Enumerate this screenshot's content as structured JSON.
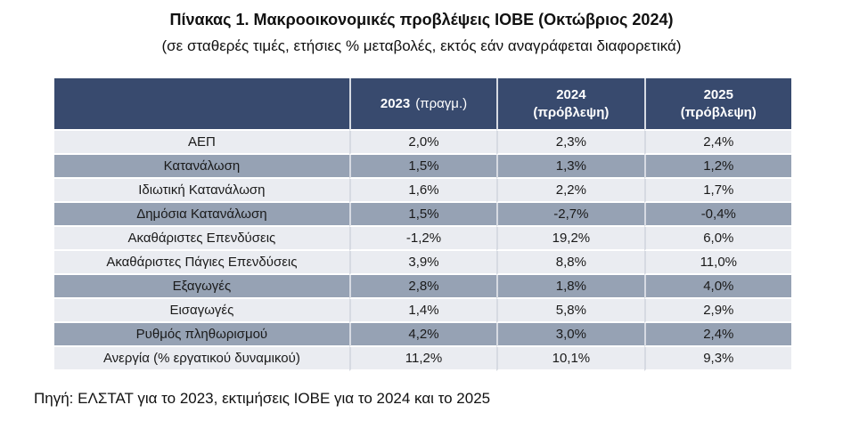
{
  "page": {
    "title": "Πίνακας 1. Μακροοικονομικές προβλέψεις ΙΟΒΕ (Οκτώβριος 2024)",
    "subtitle": "(σε σταθερές τιμές, ετήσιες % μεταβολές, εκτός εάν αναγράφεται διαφορετικά)",
    "source_note": "Πηγή: ΕΛΣΤΑΤ για το 2023, εκτιμήσεις ΙΟΒΕ για το 2024 και το 2025"
  },
  "colors": {
    "header_bg": "#384A6E",
    "header_text": "#FFFFFF",
    "row_dark": "#96A2B4",
    "row_light": "#EAECF1",
    "cell_divider": "#D6DAE2",
    "body_text": "#1A1A1A"
  },
  "table": {
    "header": {
      "col2023": {
        "year": "2023",
        "note": "(πραγμ.)"
      },
      "col2024": {
        "year": "2024",
        "note": "(πρόβλεψη)"
      },
      "col2025": {
        "year": "2025",
        "note": "(πρόβλεψη)"
      }
    },
    "rows": [
      {
        "label": "ΑΕΠ",
        "v2023": "2,0%",
        "v2024": "2,3%",
        "v2025": "2,4%",
        "shade": "light"
      },
      {
        "label": "Κατανάλωση",
        "v2023": "1,5%",
        "v2024": "1,3%",
        "v2025": "1,2%",
        "shade": "dark"
      },
      {
        "label": "Ιδιωτική Κατανάλωση",
        "v2023": "1,6%",
        "v2024": "2,2%",
        "v2025": "1,7%",
        "shade": "light"
      },
      {
        "label": "Δημόσια Κατανάλωση",
        "v2023": "1,5%",
        "v2024": "-2,7%",
        "v2025": "-0,4%",
        "shade": "dark"
      },
      {
        "label": "Ακαθάριστες Επενδύσεις",
        "v2023": "-1,2%",
        "v2024": "19,2%",
        "v2025": "6,0%",
        "shade": "light"
      },
      {
        "label": "Ακαθάριστες Πάγιες Επενδύσεις",
        "v2023": "3,9%",
        "v2024": "8,8%",
        "v2025": "11,0%",
        "shade": "light"
      },
      {
        "label": "Εξαγωγές",
        "v2023": "2,8%",
        "v2024": "1,8%",
        "v2025": "4,0%",
        "shade": "dark"
      },
      {
        "label": "Εισαγωγές",
        "v2023": "1,4%",
        "v2024": "5,8%",
        "v2025": "2,9%",
        "shade": "light"
      },
      {
        "label": "Ρυθμός πληθωρισμού",
        "v2023": "4,2%",
        "v2024": "3,0%",
        "v2025": "2,4%",
        "shade": "dark"
      },
      {
        "label": "Ανεργία (% εργατικού δυναμικού)",
        "v2023": "11,2%",
        "v2024": "10,1%",
        "v2025": "9,3%",
        "shade": "light"
      }
    ]
  },
  "chart_data": {
    "type": "table",
    "title": "Πίνακας 1. Μακροοικονομικές προβλέψεις ΙΟΒΕ (Οκτώβριος 2024)",
    "subtitle": "(σε σταθερές τιμές, ετήσιες % μεταβολές, εκτός εάν αναγράφεται διαφορετικά)",
    "source": "Πηγή: ΕΛΣΤΑΤ για το 2023, εκτιμήσεις ΙΟΒΕ για το 2024 και το 2025",
    "columns": [
      "",
      "2023 (πραγμ.)",
      "2024 (πρόβλεψη)",
      "2025 (πρόβλεψη)"
    ],
    "rows": [
      {
        "indicator": "ΑΕΠ",
        "y2023": 2.0,
        "y2024": 2.3,
        "y2025": 2.4
      },
      {
        "indicator": "Κατανάλωση",
        "y2023": 1.5,
        "y2024": 1.3,
        "y2025": 1.2
      },
      {
        "indicator": "Ιδιωτική Κατανάλωση",
        "y2023": 1.6,
        "y2024": 2.2,
        "y2025": 1.7
      },
      {
        "indicator": "Δημόσια Κατανάλωση",
        "y2023": 1.5,
        "y2024": -2.7,
        "y2025": -0.4
      },
      {
        "indicator": "Ακαθάριστες Επενδύσεις",
        "y2023": -1.2,
        "y2024": 19.2,
        "y2025": 6.0
      },
      {
        "indicator": "Ακαθάριστες Πάγιες Επενδύσεις",
        "y2023": 3.9,
        "y2024": 8.8,
        "y2025": 11.0
      },
      {
        "indicator": "Εξαγωγές",
        "y2023": 2.8,
        "y2024": 1.8,
        "y2025": 4.0
      },
      {
        "indicator": "Εισαγωγές",
        "y2023": 1.4,
        "y2024": 5.8,
        "y2025": 2.9
      },
      {
        "indicator": "Ρυθμός πληθωρισμού",
        "y2023": 4.2,
        "y2024": 3.0,
        "y2025": 2.4
      },
      {
        "indicator": "Ανεργία (% εργατικού δυναμικού)",
        "y2023": 11.2,
        "y2024": 10.1,
        "y2025": 9.3
      }
    ],
    "unit": "percent"
  }
}
